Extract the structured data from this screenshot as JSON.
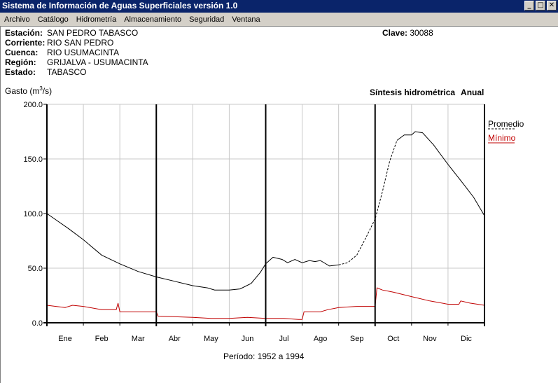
{
  "window": {
    "title": "Sistema de Información de Aguas Superficiales  versión 1.0",
    "buttons": [
      "_",
      "□",
      "✕"
    ]
  },
  "menu": [
    "Archivo",
    "Catálogo",
    "Hidrometría",
    "Almacenamiento",
    "Seguridad",
    "Ventana"
  ],
  "station": {
    "rows": [
      {
        "label": "Estación:",
        "value": "SAN PEDRO TABASCO"
      },
      {
        "label": "Corriente:",
        "value": "RIO SAN PEDRO"
      },
      {
        "label": "Cuenca:",
        "value": "RIO USUMACINTA"
      },
      {
        "label": "Región:",
        "value": "GRIJALVA - USUMACINTA"
      },
      {
        "label": "Estado:",
        "value": "TABASCO"
      }
    ],
    "clave_label": "Clave:",
    "clave_value": "30088"
  },
  "header": {
    "ylabel_pre": "Gasto (m",
    "ylabel_sup": "3",
    "ylabel_post": "/s)",
    "synthesis": "Síntesis hidrométrica",
    "period_type": "Anual"
  },
  "periodo": "Período:  1952 a 1994",
  "chart_data": {
    "type": "line",
    "x_unit": "month",
    "xlim": [
      0,
      12
    ],
    "ylim": [
      0,
      200
    ],
    "yticks": [
      "200.0",
      "150.0",
      "100.0",
      "50.0",
      "0.0"
    ],
    "yticks_values": [
      200,
      150,
      100,
      50,
      0
    ],
    "months": [
      "Ene",
      "Feb",
      "Mar",
      "Abr",
      "May",
      "Jun",
      "Jul",
      "Ago",
      "Sep",
      "Oct",
      "Nov",
      "Dic"
    ],
    "quarter_lines_at": [
      3,
      6,
      9
    ],
    "colors": {
      "promedio": "#000000",
      "minimo": "#c00000"
    },
    "series": [
      {
        "name": "Promedio",
        "style": "solid-dashed",
        "x": [
          0,
          0.3,
          0.6,
          1.0,
          1.5,
          2.0,
          2.5,
          3.0,
          3.5,
          4.0,
          4.4,
          4.6,
          4.8,
          5.0,
          5.3,
          5.6,
          5.85,
          6.0,
          6.2,
          6.45,
          6.6,
          6.8,
          7.0,
          7.2,
          7.35,
          7.5,
          7.75,
          8.0,
          8.25,
          8.5,
          8.75,
          9.0,
          9.2,
          9.4,
          9.6,
          9.8,
          10.0,
          10.1,
          10.3,
          10.6,
          11.0,
          11.4,
          11.7,
          12.0
        ],
        "y": [
          100,
          93,
          86,
          76,
          62,
          54,
          47,
          42,
          38,
          34,
          32,
          30,
          30,
          30,
          31,
          36,
          46,
          54,
          60,
          58,
          55,
          58,
          55,
          57,
          56,
          57,
          52,
          53,
          55,
          62,
          78,
          95,
          120,
          148,
          167,
          172,
          172,
          175,
          174,
          163,
          145,
          128,
          115,
          98
        ]
      },
      {
        "name": "Mínimo",
        "style": "solid",
        "x": [
          0,
          0.5,
          0.7,
          1.0,
          1.5,
          1.9,
          1.95,
          2.0,
          2.5,
          3.0,
          3.05,
          4.0,
          4.5,
          5.0,
          5.5,
          6.0,
          6.5,
          6.9,
          7.0,
          7.05,
          7.5,
          7.7,
          8.0,
          8.5,
          9.0,
          9.05,
          9.2,
          9.5,
          10.0,
          10.5,
          11.0,
          11.3,
          11.35,
          11.6,
          12.0
        ],
        "y": [
          16,
          14,
          16,
          15,
          12,
          12,
          18,
          10,
          10,
          10,
          6,
          5,
          4,
          4,
          5,
          4,
          4,
          3,
          3,
          10,
          10,
          12,
          14,
          15,
          15,
          32,
          30,
          28,
          24,
          20,
          17,
          17,
          20,
          18,
          16
        ]
      }
    ]
  }
}
